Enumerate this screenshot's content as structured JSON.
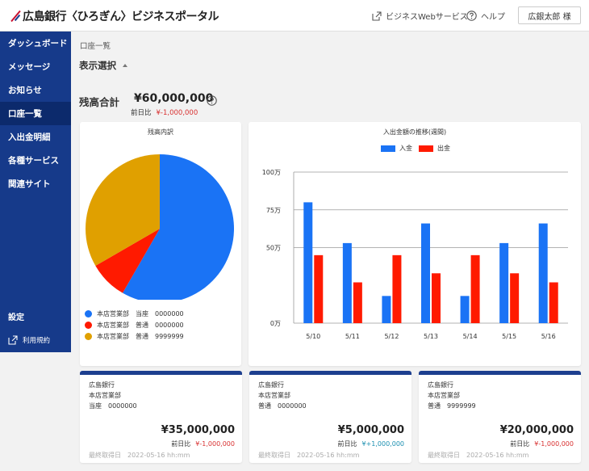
{
  "header": {
    "logo_text": "広島銀行〈ひろぎん〉ビジネスポータル",
    "web_services_label": "ビジネスWebサービス",
    "help_label": "ヘルプ",
    "user_label": "広銀太郎 様"
  },
  "sidebar": {
    "items": [
      {
        "label": "ダッシュボード",
        "active": false
      },
      {
        "label": "メッセージ",
        "active": false
      },
      {
        "label": "お知らせ",
        "active": false
      },
      {
        "label": "口座一覧",
        "active": true
      },
      {
        "label": "入出金明細",
        "active": false
      },
      {
        "label": "各種サービス",
        "active": false
      },
      {
        "label": "関連サイト",
        "active": false
      }
    ],
    "settings_label": "設定",
    "terms_label": "利用規約"
  },
  "main": {
    "breadcrumb": "口座一覧",
    "display_select_label": "表示選択",
    "balance_label": "残高合計",
    "balance_amount": "¥60,000,000",
    "diff_label": "前日比",
    "diff_value": "¥-1,000,000"
  },
  "colors": {
    "blue": "#1a73f5",
    "red": "#ff1a00",
    "gold": "#e0a000",
    "navy": "#163a8a",
    "negative": "#d83030",
    "positive": "#1a8fb0"
  },
  "chart_data": [
    {
      "type": "pie",
      "title": "残高内訳",
      "slices": [
        {
          "label": "本店営業部　当座　0000000",
          "value": 35000000,
          "color": "#1a73f5"
        },
        {
          "label": "本店営業部　普通　0000000",
          "value": 5000000,
          "color": "#ff1a00"
        },
        {
          "label": "本店営業部　普通　9999999",
          "value": 20000000,
          "color": "#e0a000"
        }
      ]
    },
    {
      "type": "bar",
      "title": "入出金額の推移(週間)",
      "categories": [
        "5/10",
        "5/11",
        "5/12",
        "5/13",
        "5/14",
        "5/15",
        "5/16"
      ],
      "series": [
        {
          "name": "入金",
          "color": "#1a73f5",
          "values": [
            80,
            53,
            18,
            66,
            18,
            53,
            66
          ]
        },
        {
          "name": "出金",
          "color": "#ff1a00",
          "values": [
            45,
            27,
            45,
            33,
            45,
            33,
            27
          ]
        }
      ],
      "yticks": [
        {
          "value": 0,
          "label": "0万"
        },
        {
          "value": 50,
          "label": "50万"
        },
        {
          "value": 75,
          "label": "75万"
        },
        {
          "value": 100,
          "label": "100万"
        }
      ],
      "ylim": [
        0,
        100
      ],
      "legend": "top-center"
    }
  ],
  "accounts": [
    {
      "bank": "広島銀行",
      "branch": "本店営業部",
      "type_number": "当座　0000000",
      "amount": "¥35,000,000",
      "diff_label": "前日比",
      "diff": "¥-1,000,000",
      "diff_color": "#d83030",
      "time": "最終取得日　2022-05-16 hh:mm"
    },
    {
      "bank": "広島銀行",
      "branch": "本店営業部",
      "type_number": "普通　0000000",
      "amount": "¥5,000,000",
      "diff_label": "前日比",
      "diff": "¥+1,000,000",
      "diff_color": "#1a8fb0",
      "time": "最終取得日　2022-05-16 hh:mm"
    },
    {
      "bank": "広島銀行",
      "branch": "本店営業部",
      "type_number": "普通　9999999",
      "amount": "¥20,000,000",
      "diff_label": "前日比",
      "diff": "¥-1,000,000",
      "diff_color": "#d83030",
      "time": "最終取得日　2022-05-16 hh:mm"
    }
  ]
}
